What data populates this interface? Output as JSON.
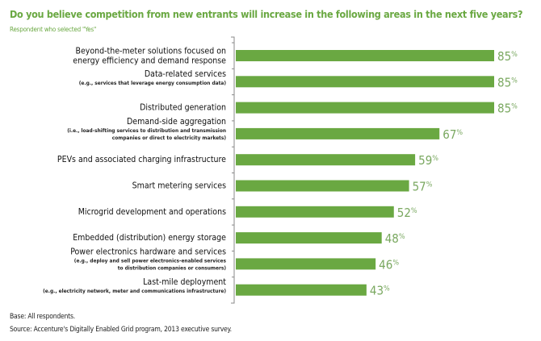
{
  "chart_data": {
    "type": "bar",
    "orientation": "horizontal",
    "title": "Do you believe competition from new entrants will increase in the following areas in the next five years?",
    "subtitle": "Respondent who selected \"Yes\"",
    "categories": [
      {
        "label": [
          "Beyond-the-meter solutions focused on",
          "energy efficiency and demand response"
        ],
        "note": []
      },
      {
        "label": [
          "Data-related services"
        ],
        "note": [
          "(e.g., services that leverage energy consumption data)"
        ]
      },
      {
        "label": [
          "Distributed generation"
        ],
        "note": []
      },
      {
        "label": [
          "Demand-side aggregation"
        ],
        "note": [
          "(i.e., load-shifting services to distribution and transmission",
          "companies or direct to electricity markets)"
        ]
      },
      {
        "label": [
          "PEVs and associated charging infrastructure"
        ],
        "note": []
      },
      {
        "label": [
          "Smart metering services"
        ],
        "note": []
      },
      {
        "label": [
          "Microgrid development and operations"
        ],
        "note": []
      },
      {
        "label": [
          "Embedded (distribution) energy storage"
        ],
        "note": []
      },
      {
        "label": [
          "Power electronics hardware and services"
        ],
        "note": [
          "(e.g., deploy and sell power electronics-enabled services",
          "to distribution companies or consumers)"
        ]
      },
      {
        "label": [
          "Last-mile deployment"
        ],
        "note": [
          "(e.g., electricity network, meter and communications infrastructure)"
        ]
      }
    ],
    "values": [
      85,
      85,
      85,
      67,
      59,
      57,
      52,
      48,
      46,
      43
    ],
    "unit": "%",
    "xlim": [
      0,
      100
    ],
    "grid": false,
    "bar_color": "#6aa842",
    "label_color": "#7aa860"
  },
  "footer": {
    "base": "Base: All respondents.",
    "source": "Source: Accenture's Digitally Enabled Grid program, 2013 executive survey."
  }
}
